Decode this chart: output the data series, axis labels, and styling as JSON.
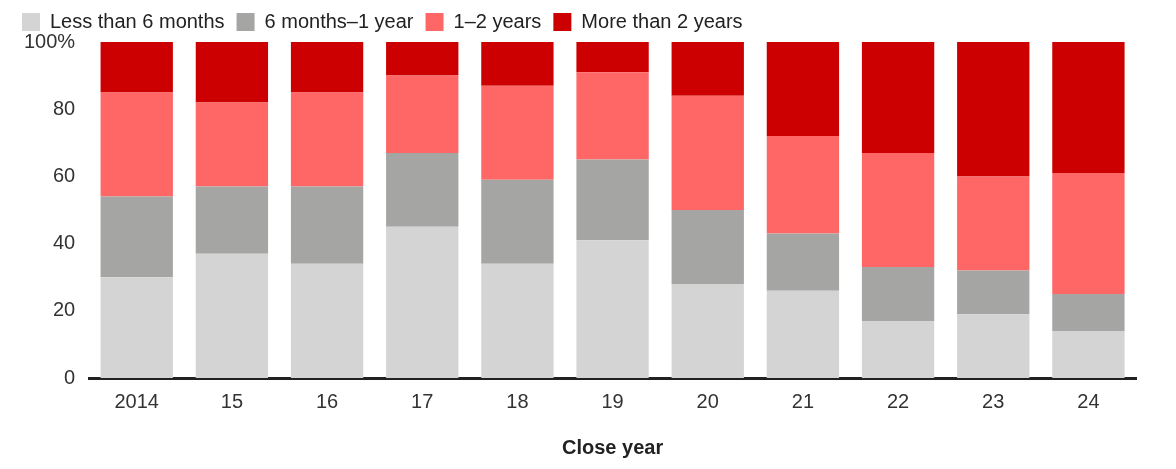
{
  "chart_data": {
    "type": "bar",
    "stacked": true,
    "xlabel": "Close year",
    "categories": [
      "2014",
      "15",
      "16",
      "17",
      "18",
      "19",
      "20",
      "21",
      "22",
      "23",
      "24"
    ],
    "series": [
      {
        "name": "Less than 6 months",
        "color": "#d4d4d4",
        "values": [
          30,
          37,
          34,
          45,
          34,
          41,
          28,
          26,
          17,
          19,
          14
        ]
      },
      {
        "name": "6 months–1 year",
        "color": "#a5a5a3",
        "values": [
          24,
          20,
          23,
          22,
          25,
          24,
          22,
          17,
          16,
          13,
          11
        ]
      },
      {
        "name": "1–2 years",
        "color": "#ff6666",
        "values": [
          31,
          25,
          28,
          23,
          28,
          26,
          34,
          29,
          34,
          28,
          36
        ]
      },
      {
        "name": "More than 2 years",
        "color": "#cc0000",
        "values": [
          15,
          18,
          15,
          10,
          13,
          9,
          16,
          28,
          33,
          40,
          39
        ]
      }
    ],
    "ylim": [
      0,
      100
    ],
    "yticks": [
      0,
      20,
      40,
      60,
      80,
      {
        "value": 100,
        "label": "100%"
      }
    ],
    "grid": false,
    "legend": "top left"
  }
}
